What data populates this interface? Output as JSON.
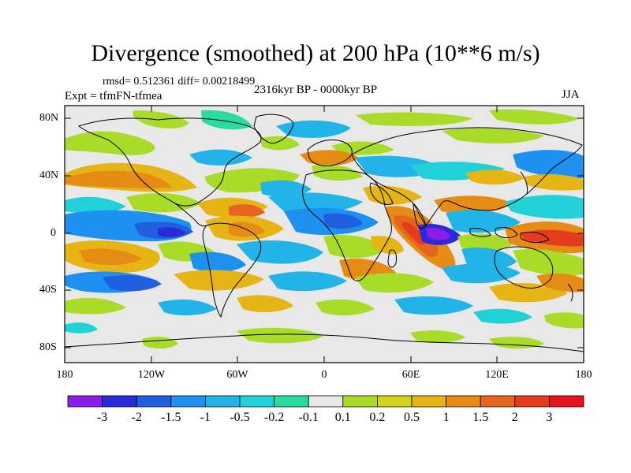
{
  "title": "Divergence (smoothed) at 200 hPa (10**6 m/s)",
  "stats": "rmsd= 0.512361 diff= 0.00218499",
  "experiment": "Expt = tfmFN-tfmea",
  "period": "2316kyr BP - 0000kyr BP",
  "season": "JJA",
  "lat_labels": [
    "80N",
    "40N",
    "0",
    "40S",
    "80S"
  ],
  "lon_labels": [
    "180",
    "120W",
    "60W",
    "0",
    "60E",
    "120E",
    "180"
  ],
  "colorbar": {
    "labels": [
      "-3",
      "-2",
      "-1.5",
      "-1",
      "-0.5",
      "-0.2",
      "-0.1",
      "0.1",
      "0.2",
      "0.5",
      "1",
      "1.5",
      "2",
      "3"
    ],
    "colors": [
      "#8c1de8",
      "#2a2ad8",
      "#1f5fe0",
      "#1e90f0",
      "#22b4e8",
      "#20d2d8",
      "#28dca0",
      "#e8e8e8",
      "#a8dc28",
      "#d2d21c",
      "#e6b414",
      "#e68c14",
      "#e6641e",
      "#e63c1e",
      "#e6141e"
    ]
  },
  "colors": {
    "background": "#e8e8e8",
    "coast": "#000000"
  }
}
